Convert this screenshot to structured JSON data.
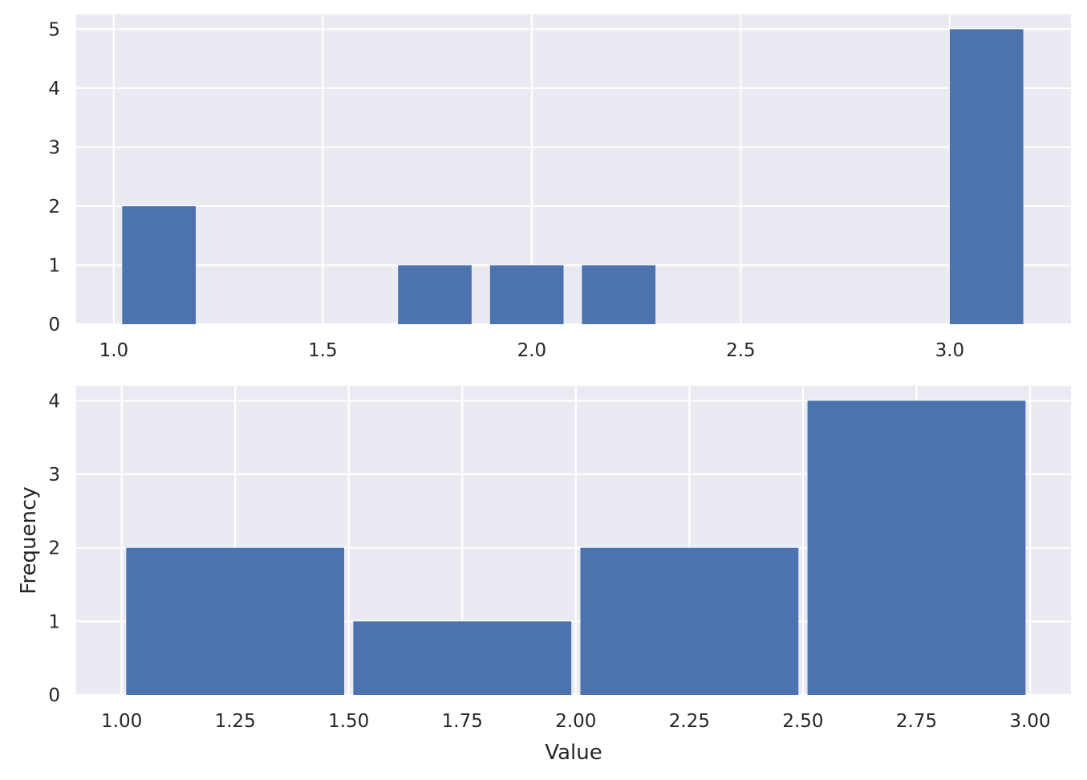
{
  "colors": {
    "background": "#eaeaf2",
    "grid": "#ffffff",
    "bar": "#4c72b0",
    "text": "#262626"
  },
  "chart_data": [
    {
      "type": "bar",
      "title": "",
      "xlabel": "",
      "ylabel": "",
      "grid": true,
      "xlim": [
        0.91,
        3.29
      ],
      "ylim": [
        0,
        5.25
      ],
      "xticks": [
        1.0,
        1.5,
        2.0,
        2.5,
        3.0
      ],
      "xtick_labels": [
        "1.0",
        "1.5",
        "2.0",
        "2.5",
        "3.0"
      ],
      "yticks": [
        0,
        1,
        2,
        3,
        4,
        5
      ],
      "ytick_labels": [
        "0",
        "1",
        "2",
        "3",
        "4",
        "5"
      ],
      "bars": [
        {
          "x0": 1.02,
          "x1": 1.196,
          "value": 2
        },
        {
          "x0": 1.68,
          "x1": 1.856,
          "value": 1
        },
        {
          "x0": 1.9,
          "x1": 2.076,
          "value": 1
        },
        {
          "x0": 2.12,
          "x1": 2.296,
          "value": 1
        },
        {
          "x0": 3.0,
          "x1": 3.176,
          "value": 5
        }
      ]
    },
    {
      "type": "bar",
      "title": "",
      "xlabel": "Value",
      "ylabel": "Frequency",
      "grid": true,
      "xlim": [
        0.9,
        3.09
      ],
      "ylim": [
        0,
        4.2
      ],
      "xticks": [
        1.0,
        1.25,
        1.5,
        1.75,
        2.0,
        2.25,
        2.5,
        2.75,
        3.0
      ],
      "xtick_labels": [
        "1.00",
        "1.25",
        "1.50",
        "1.75",
        "2.00",
        "2.25",
        "2.50",
        "2.75",
        "3.00"
      ],
      "yticks": [
        0,
        1,
        2,
        3,
        4
      ],
      "ytick_labels": [
        "0",
        "1",
        "2",
        "3",
        "4"
      ],
      "bars": [
        {
          "x0": 1.01,
          "x1": 1.49,
          "value": 2
        },
        {
          "x0": 1.51,
          "x1": 1.99,
          "value": 1
        },
        {
          "x0": 2.01,
          "x1": 2.49,
          "value": 2
        },
        {
          "x0": 2.51,
          "x1": 2.99,
          "value": 4
        }
      ]
    }
  ]
}
